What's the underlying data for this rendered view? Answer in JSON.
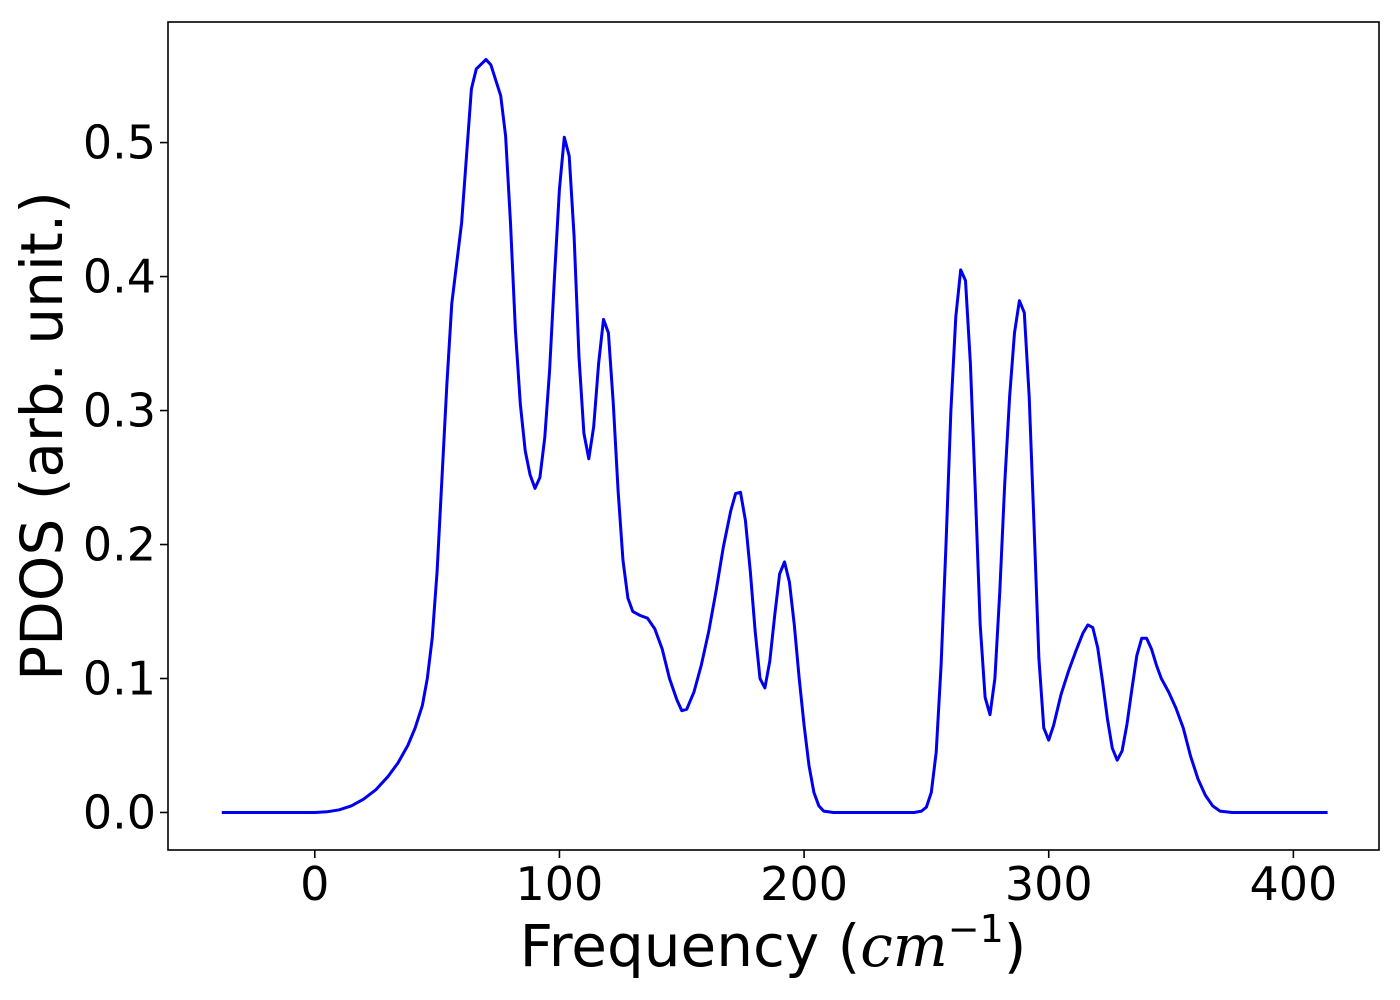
{
  "chart_data": {
    "type": "line",
    "title": "",
    "xlabel_text": "Frequency (",
    "xlabel_unit": "cm",
    "xlabel_exp": "−1",
    "xlabel_close": ")",
    "ylabel": "PDOS (arb. unit.)",
    "xlim": [
      -60,
      435
    ],
    "ylim": [
      -0.028,
      0.59
    ],
    "x_ticks": [
      0,
      100,
      200,
      300,
      400
    ],
    "x_tick_labels": [
      "0",
      "100",
      "200",
      "300",
      "400"
    ],
    "y_ticks": [
      0.0,
      0.1,
      0.2,
      0.3,
      0.4,
      0.5
    ],
    "y_tick_labels": [
      "0.0",
      "0.1",
      "0.2",
      "0.3",
      "0.4",
      "0.5"
    ],
    "grid": false,
    "series": [
      {
        "color": "#0000ee",
        "points": [
          [
            -38,
            0.0
          ],
          [
            -20,
            0.0
          ],
          [
            0,
            0.0
          ],
          [
            5,
            0.0005
          ],
          [
            10,
            0.002
          ],
          [
            15,
            0.005
          ],
          [
            20,
            0.01
          ],
          [
            25,
            0.017
          ],
          [
            30,
            0.027
          ],
          [
            34,
            0.037
          ],
          [
            38,
            0.05
          ],
          [
            41,
            0.063
          ],
          [
            44,
            0.08
          ],
          [
            46,
            0.1
          ],
          [
            48,
            0.13
          ],
          [
            50,
            0.18
          ],
          [
            52,
            0.25
          ],
          [
            54,
            0.32
          ],
          [
            56,
            0.38
          ],
          [
            58,
            0.41
          ],
          [
            60,
            0.44
          ],
          [
            62,
            0.49
          ],
          [
            64,
            0.54
          ],
          [
            66,
            0.555
          ],
          [
            70,
            0.562
          ],
          [
            72,
            0.558
          ],
          [
            76,
            0.535
          ],
          [
            78,
            0.505
          ],
          [
            80,
            0.44
          ],
          [
            82,
            0.36
          ],
          [
            84,
            0.305
          ],
          [
            86,
            0.27
          ],
          [
            88,
            0.252
          ],
          [
            90,
            0.242
          ],
          [
            92,
            0.25
          ],
          [
            94,
            0.28
          ],
          [
            96,
            0.33
          ],
          [
            98,
            0.4
          ],
          [
            100,
            0.465
          ],
          [
            102,
            0.504
          ],
          [
            104,
            0.49
          ],
          [
            106,
            0.43
          ],
          [
            108,
            0.34
          ],
          [
            110,
            0.283
          ],
          [
            112,
            0.264
          ],
          [
            114,
            0.288
          ],
          [
            116,
            0.335
          ],
          [
            118,
            0.368
          ],
          [
            120,
            0.358
          ],
          [
            122,
            0.305
          ],
          [
            124,
            0.24
          ],
          [
            126,
            0.188
          ],
          [
            128,
            0.16
          ],
          [
            130,
            0.15
          ],
          [
            133,
            0.147
          ],
          [
            136,
            0.145
          ],
          [
            139,
            0.137
          ],
          [
            142,
            0.122
          ],
          [
            145,
            0.1
          ],
          [
            148,
            0.084
          ],
          [
            150,
            0.076
          ],
          [
            152,
            0.077
          ],
          [
            155,
            0.09
          ],
          [
            158,
            0.11
          ],
          [
            161,
            0.135
          ],
          [
            164,
            0.165
          ],
          [
            167,
            0.198
          ],
          [
            170,
            0.225
          ],
          [
            172,
            0.238
          ],
          [
            174,
            0.239
          ],
          [
            176,
            0.218
          ],
          [
            178,
            0.18
          ],
          [
            180,
            0.135
          ],
          [
            182,
            0.1
          ],
          [
            184,
            0.093
          ],
          [
            186,
            0.113
          ],
          [
            188,
            0.147
          ],
          [
            190,
            0.178
          ],
          [
            192,
            0.187
          ],
          [
            194,
            0.172
          ],
          [
            196,
            0.14
          ],
          [
            198,
            0.1
          ],
          [
            200,
            0.065
          ],
          [
            202,
            0.035
          ],
          [
            204,
            0.015
          ],
          [
            206,
            0.005
          ],
          [
            208,
            0.001
          ],
          [
            212,
            0.0
          ],
          [
            230,
            0.0
          ],
          [
            245,
            0.0
          ],
          [
            248,
            0.001
          ],
          [
            250,
            0.004
          ],
          [
            252,
            0.015
          ],
          [
            254,
            0.045
          ],
          [
            256,
            0.11
          ],
          [
            258,
            0.2
          ],
          [
            260,
            0.3
          ],
          [
            262,
            0.37
          ],
          [
            264,
            0.405
          ],
          [
            266,
            0.397
          ],
          [
            268,
            0.335
          ],
          [
            270,
            0.24
          ],
          [
            272,
            0.14
          ],
          [
            274,
            0.086
          ],
          [
            276,
            0.073
          ],
          [
            278,
            0.1
          ],
          [
            280,
            0.165
          ],
          [
            282,
            0.245
          ],
          [
            284,
            0.31
          ],
          [
            286,
            0.358
          ],
          [
            288,
            0.382
          ],
          [
            290,
            0.373
          ],
          [
            292,
            0.31
          ],
          [
            294,
            0.215
          ],
          [
            296,
            0.115
          ],
          [
            298,
            0.063
          ],
          [
            300,
            0.054
          ],
          [
            302,
            0.065
          ],
          [
            305,
            0.088
          ],
          [
            308,
            0.105
          ],
          [
            311,
            0.12
          ],
          [
            314,
            0.134
          ],
          [
            316,
            0.14
          ],
          [
            318,
            0.138
          ],
          [
            320,
            0.123
          ],
          [
            322,
            0.098
          ],
          [
            324,
            0.07
          ],
          [
            326,
            0.048
          ],
          [
            328,
            0.039
          ],
          [
            330,
            0.046
          ],
          [
            332,
            0.066
          ],
          [
            334,
            0.092
          ],
          [
            336,
            0.117
          ],
          [
            338,
            0.13
          ],
          [
            340,
            0.13
          ],
          [
            342,
            0.122
          ],
          [
            344,
            0.11
          ],
          [
            346,
            0.1
          ],
          [
            349,
            0.09
          ],
          [
            352,
            0.078
          ],
          [
            355,
            0.063
          ],
          [
            358,
            0.042
          ],
          [
            361,
            0.025
          ],
          [
            364,
            0.013
          ],
          [
            367,
            0.005
          ],
          [
            370,
            0.001
          ],
          [
            375,
            0.0
          ],
          [
            390,
            0.0
          ],
          [
            414,
            0.0
          ]
        ]
      }
    ]
  }
}
